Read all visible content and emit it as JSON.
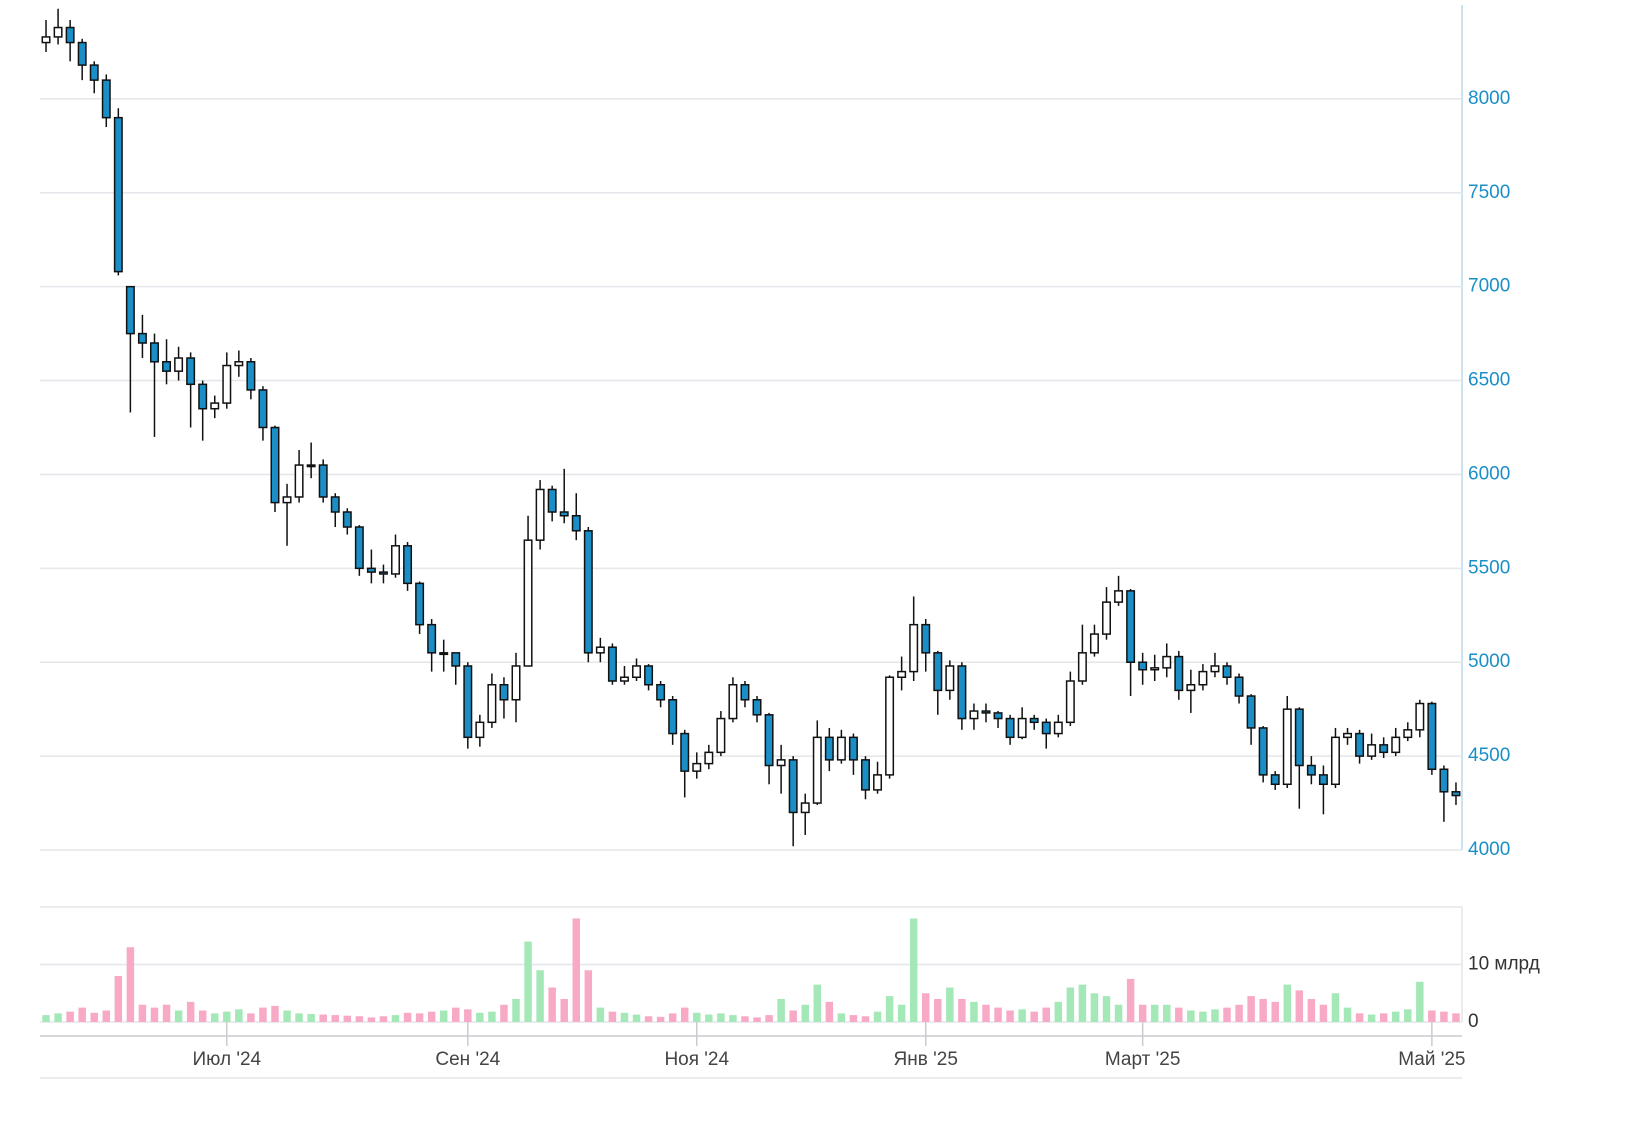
{
  "chart_data": {
    "type": "candlestick",
    "open": [
      8300,
      8330,
      8380,
      8300,
      8180,
      8100,
      7900,
      7000,
      6750,
      6700,
      6600,
      6550,
      6620,
      6480,
      6350,
      6380,
      6580,
      6600,
      6450,
      6250,
      5850,
      5880,
      6050,
      6050,
      5880,
      5800,
      5720,
      5500,
      5480,
      5470,
      5620,
      5420,
      5200,
      5050,
      5050,
      4980,
      4600,
      4680,
      4880,
      4800,
      4980,
      5650,
      5920,
      5800,
      5780,
      5700,
      5050,
      5080,
      4900,
      4920,
      4980,
      4880,
      4800,
      4620,
      4420,
      4460,
      4520,
      4700,
      4880,
      4800,
      4720,
      4450,
      4480,
      4200,
      4250,
      4600,
      4480,
      4600,
      4480,
      4320,
      4400,
      4920,
      4950,
      5200,
      5050,
      4850,
      4980,
      4700,
      4740,
      4730,
      4700,
      4600,
      4700,
      4680,
      4620,
      4680,
      4900,
      5050,
      5150,
      5320,
      5380,
      5000,
      4960,
      4970,
      5030,
      4850,
      4880,
      4950,
      4980,
      4920,
      4820,
      4650,
      4400,
      4350,
      4750,
      4450,
      4400,
      4350,
      4600,
      4620,
      4500,
      4560,
      4520,
      4600,
      4640,
      4780,
      4430,
      4310
    ],
    "high": [
      8420,
      8480,
      8420,
      8320,
      8200,
      8130,
      7950,
      7000,
      6850,
      6750,
      6720,
      6680,
      6650,
      6500,
      6420,
      6650,
      6660,
      6620,
      6470,
      6260,
      5950,
      6130,
      6170,
      6080,
      5900,
      5820,
      5730,
      5600,
      5520,
      5680,
      5640,
      5430,
      5230,
      5120,
      5050,
      5000,
      4720,
      4940,
      4920,
      5050,
      5780,
      5970,
      5940,
      6030,
      5900,
      5720,
      5130,
      5100,
      4980,
      5020,
      4990,
      4900,
      4820,
      4640,
      4520,
      4560,
      4740,
      4920,
      4900,
      4820,
      4730,
      4560,
      4500,
      4300,
      4690,
      4650,
      4640,
      4620,
      4500,
      4470,
      4930,
      5030,
      5350,
      5230,
      5060,
      5010,
      5000,
      4780,
      4780,
      4740,
      4720,
      4760,
      4720,
      4700,
      4720,
      4950,
      5200,
      5200,
      5400,
      5460,
      5390,
      5050,
      5040,
      5100,
      5060,
      4960,
      4990,
      5050,
      5000,
      4940,
      4830,
      4660,
      4420,
      4820,
      4760,
      4500,
      4450,
      4650,
      4650,
      4640,
      4620,
      4600,
      4650,
      4680,
      4800,
      4790,
      4450,
      4360
    ],
    "low": [
      8250,
      8290,
      8200,
      8100,
      8030,
      7850,
      7060,
      6330,
      6620,
      6200,
      6480,
      6500,
      6250,
      6180,
      6300,
      6350,
      6520,
      6400,
      6180,
      5800,
      5620,
      5850,
      5980,
      5850,
      5720,
      5680,
      5460,
      5420,
      5420,
      5450,
      5380,
      5150,
      4950,
      4950,
      4880,
      4540,
      4550,
      4650,
      4700,
      4680,
      4980,
      5600,
      5750,
      5740,
      5650,
      5000,
      5000,
      4880,
      4880,
      4900,
      4850,
      4760,
      4560,
      4280,
      4380,
      4430,
      4500,
      4680,
      4760,
      4680,
      4350,
      4300,
      4020,
      4080,
      4240,
      4420,
      4460,
      4400,
      4270,
      4300,
      4380,
      4850,
      4900,
      4950,
      4720,
      4800,
      4640,
      4640,
      4680,
      4650,
      4560,
      4590,
      4640,
      4540,
      4600,
      4660,
      4880,
      5030,
      5120,
      5300,
      4820,
      4880,
      4900,
      4920,
      4800,
      4730,
      4850,
      4920,
      4880,
      4780,
      4560,
      4360,
      4320,
      4330,
      4220,
      4350,
      4190,
      4330,
      4560,
      4460,
      4480,
      4490,
      4500,
      4580,
      4600,
      4400,
      4150,
      4240
    ],
    "close": [
      8330,
      8380,
      8300,
      8180,
      8100,
      7900,
      7080,
      6750,
      6700,
      6600,
      6550,
      6620,
      6480,
      6350,
      6380,
      6580,
      6600,
      6450,
      6250,
      5850,
      5880,
      6050,
      6050,
      5880,
      5800,
      5720,
      5500,
      5480,
      5470,
      5620,
      5420,
      5200,
      5050,
      5050,
      4980,
      4600,
      4680,
      4880,
      4800,
      4980,
      5650,
      5920,
      5800,
      5780,
      5700,
      5050,
      5080,
      4900,
      4920,
      4980,
      4880,
      4800,
      4620,
      4420,
      4460,
      4520,
      4700,
      4880,
      4800,
      4720,
      4450,
      4480,
      4200,
      4250,
      4600,
      4480,
      4600,
      4480,
      4320,
      4400,
      4920,
      4950,
      5200,
      5050,
      4850,
      4980,
      4700,
      4740,
      4730,
      4700,
      4600,
      4700,
      4680,
      4620,
      4680,
      4900,
      5050,
      5150,
      5320,
      5380,
      5000,
      4960,
      4970,
      5030,
      4850,
      4880,
      4950,
      4980,
      4920,
      4820,
      4650,
      4400,
      4350,
      4750,
      4450,
      4400,
      4350,
      4600,
      4620,
      4500,
      4560,
      4520,
      4600,
      4640,
      4780,
      4430,
      4310,
      4290
    ],
    "volume": [
      1.2,
      1.5,
      1.8,
      2.5,
      1.6,
      2.0,
      8,
      13,
      3,
      2.5,
      3,
      2,
      3.5,
      2,
      1.5,
      1.8,
      2.2,
      1.5,
      2.5,
      2.8,
      2,
      1.5,
      1.4,
      1.3,
      1.2,
      1.1,
      1.0,
      0.8,
      1.0,
      1.2,
      1.6,
      1.5,
      1.8,
      2,
      2.5,
      2.2,
      1.6,
      1.8,
      3,
      4,
      14,
      9,
      6,
      4,
      18,
      9,
      2.5,
      1.8,
      1.6,
      1.3,
      1.0,
      0.9,
      1.5,
      2.5,
      1.6,
      1.3,
      1.5,
      1.2,
      1.0,
      0.8,
      1.2,
      4.0,
      2.0,
      3.0,
      6.5,
      3.5,
      1.5,
      1.2,
      1.0,
      1.8,
      4.5,
      3.0,
      18,
      5.0,
      4.0,
      6.0,
      4.0,
      3.5,
      3.0,
      2.5,
      2.0,
      2.2,
      1.8,
      2.5,
      3.5,
      6.0,
      6.5,
      5.0,
      4.5,
      3.0,
      7.5,
      3.0,
      3.0,
      3.0,
      2.5,
      2.0,
      1.8,
      2.2,
      2.5,
      3.0,
      4.5,
      4.0,
      3.5,
      6.5,
      5.5,
      4.0,
      3.0,
      5.0,
      2.5,
      1.5,
      1.3,
      1.5,
      1.8,
      2.2,
      7.0,
      2.0,
      1.8,
      1.5
    ],
    "xlim": [
      -0.5,
      117.5
    ],
    "xticks": [
      {
        "value": 15,
        "label": "Июл '24"
      },
      {
        "value": 35,
        "label": "Сен '24"
      },
      {
        "value": 54,
        "label": "Ноя '24"
      },
      {
        "value": 73,
        "label": "Янв '25"
      },
      {
        "value": 91,
        "label": "Март '25"
      },
      {
        "value": 115,
        "label": "Май '25"
      }
    ],
    "ylim": [
      4000,
      8500
    ],
    "yticks": [
      4000,
      4500,
      5000,
      5500,
      6000,
      6500,
      7000,
      7500,
      8000
    ],
    "volume_ylim": [
      0,
      20
    ],
    "volume_yticks": [
      0,
      {
        "value": 10,
        "label": "10 млрд"
      }
    ],
    "grid": true,
    "up_color": "#ffffff",
    "down_color": "#1a8fc7",
    "volume_up_color": "#a4e8b8",
    "volume_down_color": "#f7a9c6"
  }
}
